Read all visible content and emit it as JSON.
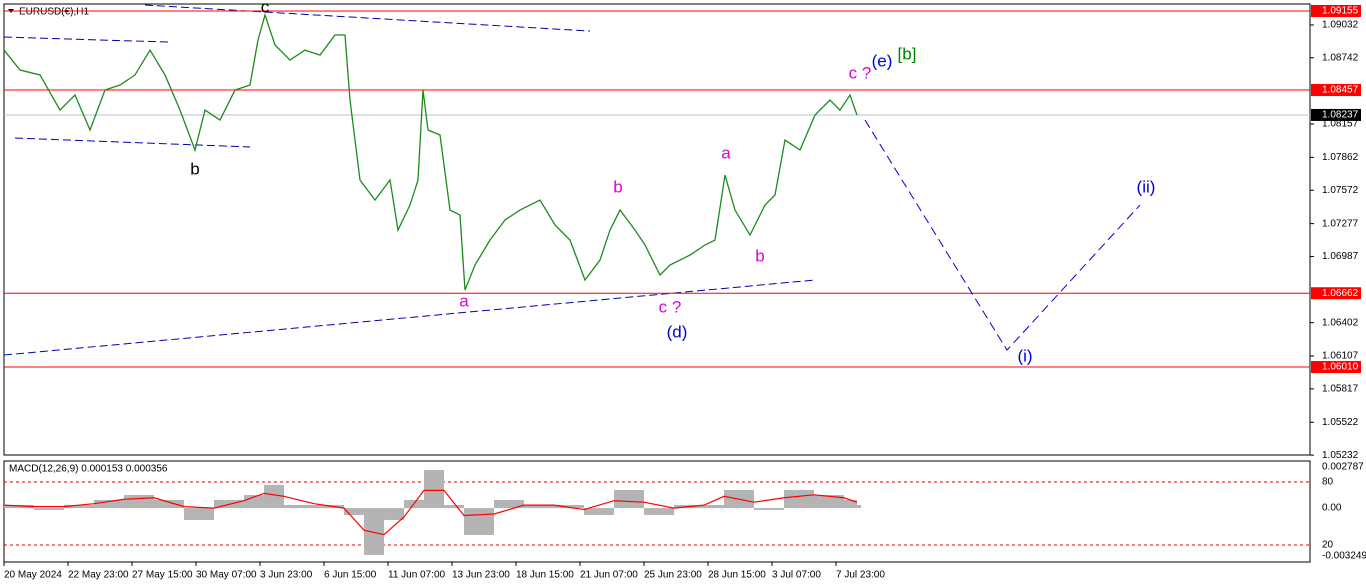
{
  "chart_data": {
    "type": "line",
    "title": "EURUSD(€),H1",
    "color": "#1e8a1e",
    "x": [
      0,
      16,
      36,
      56,
      71,
      86,
      101,
      116,
      131,
      146,
      161,
      176,
      191,
      201,
      216,
      231,
      246,
      254,
      261,
      271,
      286,
      301,
      316,
      331,
      341,
      346,
      351,
      356,
      371,
      386,
      394,
      406,
      414,
      419,
      424,
      436,
      446,
      456,
      461,
      471,
      486,
      501,
      516,
      536,
      551,
      566,
      581,
      596,
      606,
      616,
      631,
      641,
      656,
      666,
      686,
      701,
      711,
      721,
      731,
      746,
      761,
      771,
      781,
      796,
      811,
      826,
      836,
      846,
      853
    ],
    "values": [
      1.0881,
      1.08634,
      1.0859,
      1.0828,
      1.08413,
      1.08104,
      1.08457,
      1.08501,
      1.0859,
      1.0881,
      1.0859,
      1.0828,
      1.07927,
      1.0828,
      1.08192,
      1.08457,
      1.08501,
      1.08899,
      1.0912,
      1.08855,
      1.08722,
      1.0881,
      1.08766,
      1.08943,
      1.08943,
      1.08369,
      1.08015,
      1.07662,
      1.07485,
      1.07662,
      1.0722,
      1.07441,
      1.07662,
      1.08457,
      1.08104,
      1.0806,
      1.07397,
      1.07353,
      1.0669,
      1.06911,
      1.07132,
      1.07309,
      1.07397,
      1.07485,
      1.07265,
      1.07132,
      1.06779,
      1.06955,
      1.0722,
      1.07397,
      1.0722,
      1.07088,
      1.06823,
      1.06911,
      1.06999,
      1.07088,
      1.07132,
      1.07706,
      1.07397,
      1.07176,
      1.07441,
      1.0753,
      1.08015,
      1.07927,
      1.08236,
      1.08369,
      1.0828,
      1.08413,
      1.08236
    ],
    "xlim": [
      0,
      1306
    ],
    "ylim": [
      1.05233,
      1.09217
    ],
    "yticks": [
      1.09032,
      1.08742,
      1.08157,
      1.07862,
      1.07572,
      1.07277,
      1.06987,
      1.06402,
      1.06107,
      1.05817,
      1.05522,
      1.05232
    ],
    "xticks": [
      {
        "value": 0,
        "label": "20 May 2024"
      },
      {
        "value": 64,
        "label": "22 May 23:00"
      },
      {
        "value": 128,
        "label": "27 May 15:00"
      },
      {
        "value": 192,
        "label": "30 May 07:00"
      },
      {
        "value": 256,
        "label": "3 Jun 23:00"
      },
      {
        "value": 320,
        "label": "6 Jun 15:00"
      },
      {
        "value": 384,
        "label": "11 Jun 07:00"
      },
      {
        "value": 448,
        "label": "13 Jun 23:00"
      },
      {
        "value": 512,
        "label": "18 Jun 15:00"
      },
      {
        "value": 576,
        "label": "21 Jun 07:00"
      },
      {
        "value": 640,
        "label": "25 Jun 23:00"
      },
      {
        "value": 704,
        "label": "28 Jun 15:00"
      },
      {
        "value": 768,
        "label": "3 Jul 07:00"
      },
      {
        "value": 832,
        "label": "7 Jul 23:00"
      }
    ],
    "levels": [
      {
        "value": 1.09155,
        "color": "#ff0000"
      },
      {
        "value": 1.08457,
        "color": "#ff0000"
      },
      {
        "value": 1.06662,
        "color": "#ff0000"
      },
      {
        "value": 1.0601,
        "label": "1.06010",
        "color": "#ff0000"
      }
    ],
    "current_price": 1.08237,
    "trendlines": [
      {
        "x": [
          141,
          586
        ],
        "y": [
          1.09208,
          1.08978
        ]
      },
      {
        "x": [
          0,
          164
        ],
        "y": [
          1.08925,
          1.08881
        ]
      },
      {
        "x": [
          11,
          246
        ],
        "y": [
          1.08033,
          1.07954
        ]
      },
      {
        "x": [
          0,
          811
        ],
        "y": [
          1.06116,
          1.06779
        ]
      }
    ],
    "projection": {
      "x": [
        861,
        1003,
        1136
      ],
      "y": [
        1.08192,
        1.0616,
        1.07441
      ]
    },
    "annotations": [
      {
        "text": "c",
        "color": "#000000"
      },
      {
        "text": "b",
        "color": "#000000"
      },
      {
        "text": "a",
        "color": "#e000e0"
      },
      {
        "text": "b",
        "color": "#e000e0"
      },
      {
        "text": "c ?",
        "color": "#e000e0"
      },
      {
        "text": "(d)",
        "color": "#0000dd"
      },
      {
        "text": "a",
        "color": "#e000e0"
      },
      {
        "text": "b",
        "color": "#e000e0"
      },
      {
        "text": "c ?",
        "color": "#e000e0"
      },
      {
        "text": "(e)",
        "color": "#0000dd"
      },
      {
        "text": "[b]",
        "color": "#008000"
      },
      {
        "text": "(i)",
        "color": "#0000dd"
      },
      {
        "text": "(ii)",
        "color": "#0000dd"
      }
    ],
    "macd": {
      "title": "MACD(12,26,9) 0.000153 0.000356",
      "x": [
        0,
        30,
        60,
        90,
        120,
        150,
        180,
        210,
        240,
        260,
        280,
        310,
        340,
        360,
        380,
        400,
        420,
        440,
        460,
        490,
        520,
        550,
        580,
        610,
        640,
        670,
        700,
        720,
        750,
        780,
        810,
        840,
        853
      ],
      "main": [
        0.000211,
        -0.000128,
        0.000211,
        0.00055,
        0.000889,
        0.00055,
        -0.000806,
        0.00055,
        0.000889,
        0.001567,
        0.000211,
        0.000211,
        -0.000467,
        -0.003179,
        -0.000806,
        0.00055,
        0.002584,
        0.000211,
        -0.001823,
        0.00055,
        0.000211,
        0.000211,
        -0.000467,
        0.001228,
        -0.000467,
        0.000211,
        0.000211,
        0.001228,
        -0.000128,
        0.001228,
        0.000889,
        0.00055,
        0.000211
      ],
      "signal": [
        0.0002,
        0.0001,
        0.0001,
        0.0003,
        0.0006,
        0.0007,
        0.0001,
        0,
        0.0005,
        0.001,
        0.0008,
        0.0003,
        0,
        -0.0015,
        -0.0018,
        -0.0006,
        0.0012,
        0.0012,
        -0.0005,
        -0.0004,
        0.0002,
        0.0002,
        -0.0001,
        0.0005,
        0.0004,
        0,
        0.0002,
        0.0008,
        0.0004,
        0.0007,
        0.0009,
        0.0007,
        0.0004
      ],
      "main_color": "#b4b4b4",
      "signal_color": "#ff0000",
      "ylim": [
        -0.003249,
        0.002787
      ],
      "yticks": [
        0.002787,
        {
          "value": 0,
          "label": "0.00"
        },
        -0.003249
      ],
      "levels": [
        {
          "value": 0.00177,
          "label": "80"
        },
        {
          "value": -0.0025,
          "label": "20"
        }
      ]
    }
  }
}
